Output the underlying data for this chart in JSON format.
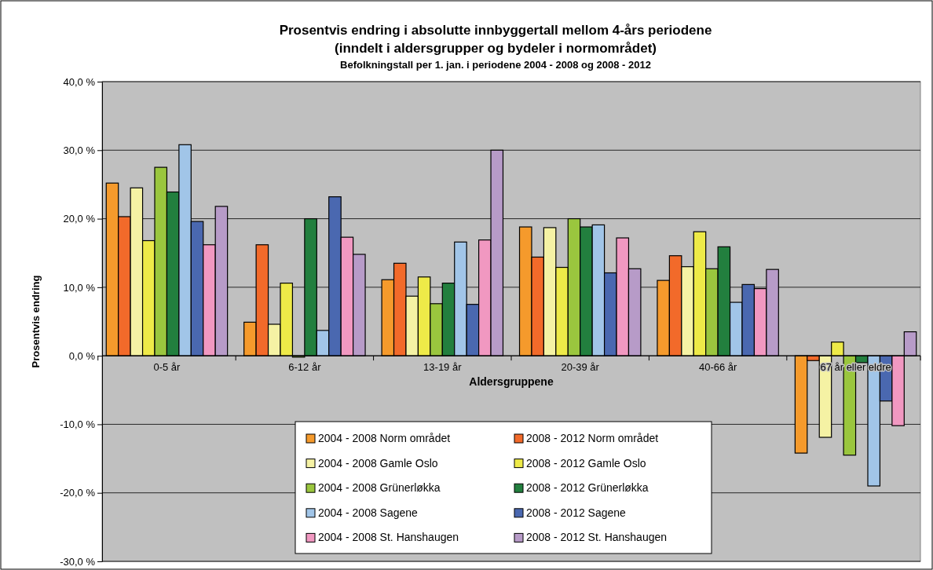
{
  "chart_data": {
    "type": "bar",
    "title": "Prosentvis endring i absolutte innbyggertall mellom 4-års periodene",
    "subtitle": [
      "(inndelt i aldersgrupper og bydeler i normområdet)",
      "Befolkningstall per 1. jan. i  periodene 2004 - 2008 og 2008 - 2012"
    ],
    "xlabel": "Aldersgruppene",
    "ylabel": "Prosentvis endring",
    "categories": [
      "0-5 år",
      "6-12 år",
      "13-19 år",
      "20-39 år",
      "40-66 år",
      "67 år eller eldre"
    ],
    "ylim": [
      -30,
      40
    ],
    "yticks": [
      {
        "value": -30,
        "label": "-30,0 %"
      },
      {
        "value": -20,
        "label": "-20,0 %"
      },
      {
        "value": -10,
        "label": "-10,0 %"
      },
      {
        "value": 0,
        "label": "0,0 %"
      },
      {
        "value": 10,
        "label": "10,0 %"
      },
      {
        "value": 20,
        "label": "20,0 %"
      },
      {
        "value": 30,
        "label": "30,0 %"
      },
      {
        "value": 40,
        "label": "40,0 %"
      }
    ],
    "grid": "y",
    "legend": "bottom",
    "series": [
      {
        "name": "2004 - 2008 Norm området",
        "color": "#f59a2c",
        "values": [
          25.2,
          4.9,
          11.1,
          18.8,
          11.0,
          -14.2
        ]
      },
      {
        "name": "2008 - 2012 Norm området",
        "color": "#f26a2a",
        "values": [
          20.3,
          16.2,
          13.5,
          14.4,
          14.6,
          -0.7
        ]
      },
      {
        "name": "2004 - 2008 Gamle Oslo",
        "color": "#f5f2a4",
        "values": [
          24.5,
          4.6,
          8.7,
          18.7,
          13.0,
          -11.9
        ]
      },
      {
        "name": "2008 - 2012 Gamle Oslo",
        "color": "#eeea48",
        "values": [
          16.8,
          10.6,
          11.5,
          12.9,
          18.1,
          2.0
        ]
      },
      {
        "name": "2004 - 2008 Grünerløkka",
        "color": "#9ac63e",
        "values": [
          27.5,
          -0.2,
          7.6,
          20.0,
          12.7,
          -14.5
        ]
      },
      {
        "name": "2008 - 2012 Grünerløkka",
        "color": "#227f3e",
        "values": [
          23.9,
          20.0,
          10.6,
          18.8,
          15.9,
          -1.0
        ]
      },
      {
        "name": "2004 - 2008 Sagene",
        "color": "#a1c5e8",
        "values": [
          30.8,
          3.7,
          16.6,
          19.1,
          7.8,
          -19.0
        ]
      },
      {
        "name": "2008 - 2012 Sagene",
        "color": "#4a68b0",
        "values": [
          19.6,
          23.2,
          7.5,
          12.1,
          10.4,
          -6.6
        ]
      },
      {
        "name": "2004 - 2008 St. Hanshaugen",
        "color": "#f198c1",
        "values": [
          16.2,
          17.3,
          16.9,
          17.2,
          9.8,
          -10.2
        ]
      },
      {
        "name": "2008 - 2012 St. Hanshaugen",
        "color": "#b79bc8",
        "values": [
          21.8,
          14.8,
          30.0,
          12.7,
          12.6,
          3.5
        ]
      }
    ]
  }
}
